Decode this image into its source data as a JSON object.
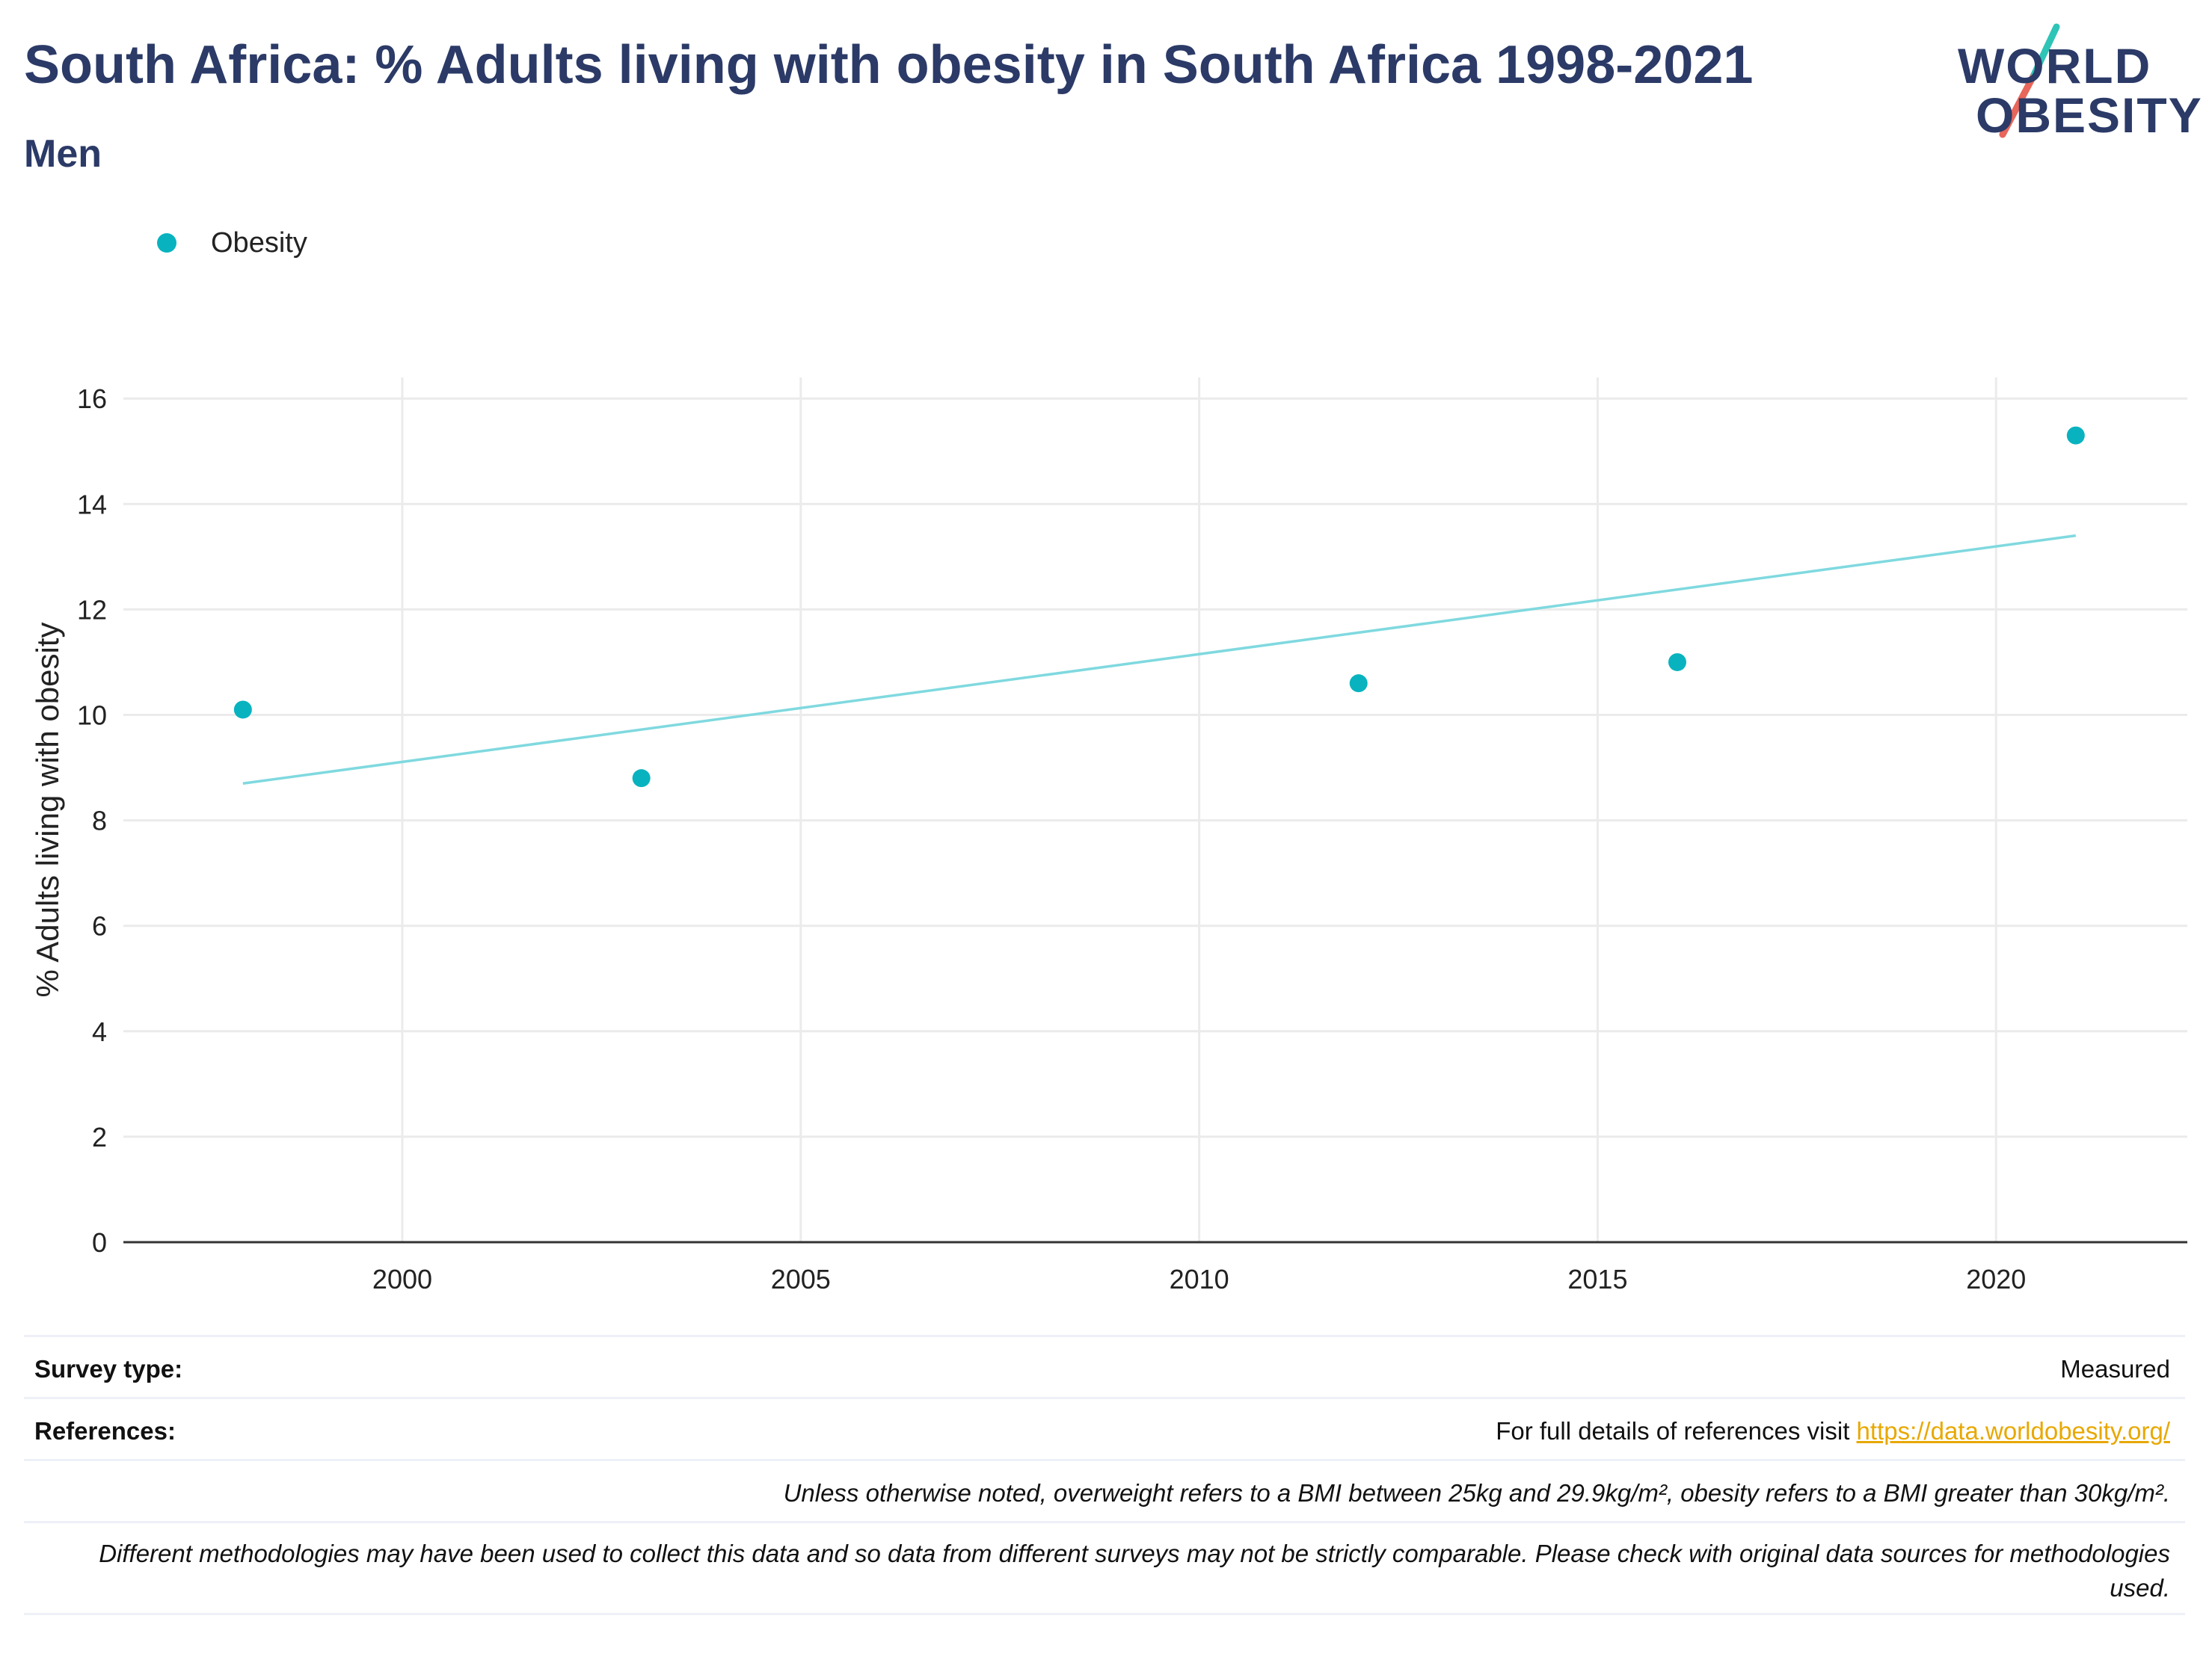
{
  "header": {
    "title": "South Africa: % Adults living with obesity in South Africa 1998-2021",
    "subtitle": "Men"
  },
  "logo": {
    "line1": "WORLD",
    "line2": "OBESITY",
    "accent_teal": "#2ec4b6",
    "accent_red": "#e8665a",
    "text_color": "#2b3a67"
  },
  "legend": {
    "label": "Obesity"
  },
  "colors": {
    "point": "#08b3bf",
    "trend": "#7fd9df",
    "grid": "#ebebeb",
    "axis": "#333333",
    "title": "#2b3a67",
    "link": "#e8a800"
  },
  "chart_data": {
    "type": "scatter",
    "title": "South Africa: % Adults living with obesity in South Africa 1998-2021",
    "subtitle": "Men",
    "xlabel": "",
    "ylabel": "% Adults living with obesity",
    "xlim": [
      1996.5,
      2022.4
    ],
    "ylim": [
      0,
      16.4
    ],
    "xticks": [
      2000,
      2005,
      2010,
      2015,
      2020
    ],
    "yticks": [
      0,
      2,
      4,
      6,
      8,
      10,
      12,
      14,
      16
    ],
    "grid": true,
    "legend_position": "top-left",
    "series": [
      {
        "name": "Obesity",
        "x": [
          1998,
          2003,
          2012,
          2016,
          2021
        ],
        "y": [
          10.1,
          8.8,
          10.6,
          11.0,
          15.3
        ]
      }
    ],
    "trendline": {
      "x": [
        1998,
        2021
      ],
      "y": [
        8.7,
        13.4
      ]
    }
  },
  "footer": {
    "survey_label": "Survey type:",
    "survey_value": "Measured",
    "references_label": "References:",
    "references_text": "For full details of references visit ",
    "references_link": "https://data.worldobesity.org/",
    "note1": "Unless otherwise noted, overweight refers to a BMI between 25kg and 29.9kg/m², obesity refers to a BMI greater than 30kg/m².",
    "note2": "Different methodologies may have been used to collect this data and so data from different surveys may not be strictly comparable. Please check with original data sources for methodologies used."
  }
}
